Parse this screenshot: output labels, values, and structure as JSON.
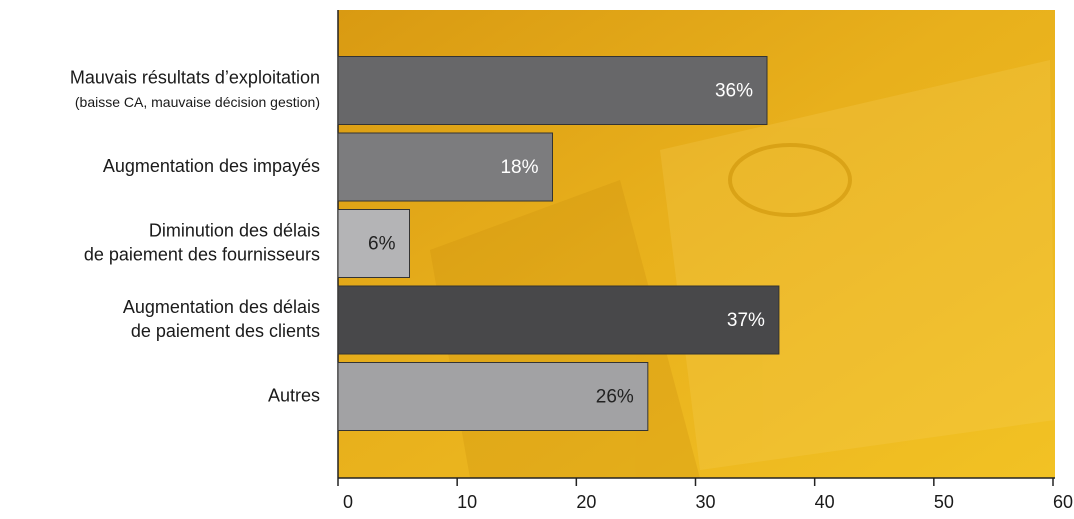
{
  "chart_data": {
    "type": "barh",
    "categories": [
      [
        "Mauvais résultats d’exploitation",
        "(baisse CA, mauvaise décision gestion)"
      ],
      [
        "Augmentation des impayés"
      ],
      [
        "Diminution des délais",
        "de paiement des fournisseurs"
      ],
      [
        "Augmentation des délais",
        "de paiement des clients"
      ],
      [
        "Autres"
      ]
    ],
    "values": [
      36,
      18,
      6,
      37,
      26
    ],
    "value_labels": [
      "36%",
      "18%",
      "6%",
      "37%",
      "26%"
    ],
    "colors": [
      "#676769",
      "#7c7c7e",
      "#b4b4b6",
      "#48484a",
      "#a2a2a4"
    ],
    "xlim": [
      0,
      60
    ],
    "xticks": [
      0,
      10,
      20,
      30,
      40,
      50,
      60
    ]
  }
}
